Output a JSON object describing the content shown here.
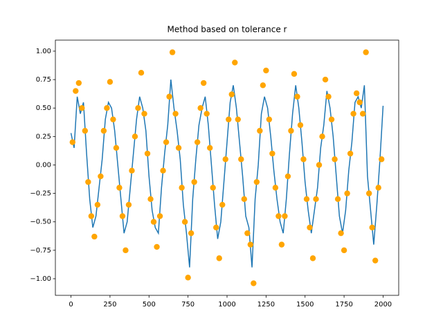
{
  "chart_data": {
    "type": "line",
    "title": "Method based on tolerance r",
    "xlim": [
      -100,
      2100
    ],
    "ylim": [
      -1.146,
      1.097
    ],
    "xticks": [
      0,
      250,
      500,
      750,
      1000,
      1250,
      1500,
      1750,
      2000
    ],
    "yticks": [
      {
        "value": 1,
        "label": "1.00"
      },
      {
        "value": 0.75,
        "label": "0.75"
      },
      {
        "value": 0.5,
        "label": "0.50"
      },
      {
        "value": 0.25,
        "label": "0.25"
      },
      {
        "value": 0,
        "label": "0.00"
      },
      {
        "value": -0.25,
        "label": "−0.25"
      },
      {
        "value": -0.5,
        "label": "−0.50"
      },
      {
        "value": -0.75,
        "label": "−0.75"
      },
      {
        "value": -1,
        "label": "−1.00"
      }
    ],
    "series": [
      {
        "color": "#1f77b4",
        "style": "line",
        "x": [
          0,
          20,
          40,
          60,
          80,
          100,
          120,
          140,
          160,
          180,
          200,
          220,
          240,
          260,
          280,
          300,
          320,
          340,
          360,
          380,
          400,
          420,
          440,
          460,
          480,
          500,
          520,
          540,
          560,
          580,
          600,
          620,
          640,
          660,
          680,
          700,
          720,
          740,
          760,
          780,
          800,
          820,
          840,
          860,
          880,
          900,
          920,
          940,
          960,
          980,
          1000,
          1020,
          1040,
          1060,
          1080,
          1100,
          1120,
          1140,
          1160,
          1180,
          1200,
          1220,
          1240,
          1260,
          1280,
          1300,
          1320,
          1340,
          1360,
          1380,
          1400,
          1420,
          1440,
          1460,
          1480,
          1500,
          1520,
          1540,
          1560,
          1580,
          1600,
          1620,
          1640,
          1660,
          1680,
          1700,
          1720,
          1740,
          1760,
          1780,
          1800,
          1820,
          1840,
          1860,
          1880,
          1900,
          1920,
          1940,
          1960,
          1980,
          2000
        ],
        "values": [
          0.28,
          0.15,
          0.6,
          0.45,
          0.55,
          0.1,
          -0.3,
          -0.55,
          -0.45,
          -0.2,
          0.05,
          0.4,
          0.55,
          0.5,
          0.3,
          0.0,
          -0.3,
          -0.6,
          -0.5,
          -0.2,
          0.1,
          0.4,
          0.6,
          0.5,
          0.3,
          -0.1,
          -0.4,
          -0.55,
          -0.6,
          -0.2,
          0.1,
          0.35,
          0.75,
          0.5,
          0.3,
          0.05,
          -0.35,
          -0.6,
          -0.9,
          -0.3,
          0.05,
          0.35,
          0.5,
          0.6,
          0.35,
          0.0,
          -0.35,
          -0.65,
          -0.5,
          -0.15,
          0.2,
          0.55,
          0.7,
          0.5,
          0.2,
          -0.1,
          -0.45,
          -0.55,
          -0.9,
          -0.3,
          0.0,
          0.45,
          0.6,
          0.5,
          0.25,
          -0.05,
          -0.3,
          -0.5,
          -0.6,
          -0.3,
          0.1,
          0.45,
          0.7,
          0.5,
          0.2,
          -0.15,
          -0.4,
          -0.6,
          -0.4,
          -0.2,
          0.15,
          0.35,
          0.65,
          0.5,
          0.25,
          -0.1,
          -0.45,
          -0.6,
          -0.4,
          -0.05,
          0.2,
          0.55,
          0.6,
          0.5,
          0.7,
          -0.1,
          -0.4,
          -0.7,
          -0.35,
          0.05,
          0.52
        ]
      },
      {
        "color": "#ffa500",
        "style": "markers",
        "x": [
          10,
          30,
          50,
          70,
          90,
          110,
          130,
          150,
          170,
          190,
          210,
          230,
          250,
          270,
          290,
          310,
          330,
          350,
          370,
          390,
          410,
          430,
          450,
          470,
          490,
          510,
          530,
          550,
          570,
          590,
          610,
          630,
          650,
          670,
          690,
          710,
          730,
          750,
          770,
          790,
          810,
          830,
          850,
          870,
          890,
          910,
          930,
          950,
          970,
          990,
          1010,
          1030,
          1050,
          1070,
          1090,
          1110,
          1130,
          1150,
          1170,
          1190,
          1210,
          1230,
          1250,
          1270,
          1290,
          1310,
          1330,
          1350,
          1370,
          1390,
          1410,
          1430,
          1450,
          1470,
          1490,
          1510,
          1530,
          1550,
          1570,
          1590,
          1610,
          1630,
          1650,
          1670,
          1690,
          1710,
          1730,
          1750,
          1770,
          1790,
          1810,
          1830,
          1850,
          1870,
          1890,
          1910,
          1930,
          1950,
          1970,
          1990
        ],
        "values": [
          0.2,
          0.65,
          0.72,
          0.5,
          0.3,
          -0.15,
          -0.45,
          -0.63,
          -0.35,
          -0.1,
          0.3,
          0.5,
          0.73,
          0.4,
          0.15,
          -0.2,
          -0.45,
          -0.75,
          -0.35,
          -0.05,
          0.25,
          0.5,
          0.81,
          0.45,
          0.1,
          -0.3,
          -0.5,
          -0.72,
          -0.45,
          -0.05,
          0.2,
          0.6,
          0.99,
          0.45,
          0.15,
          -0.2,
          -0.5,
          -0.99,
          -0.6,
          -0.15,
          0.2,
          0.5,
          0.72,
          0.45,
          0.15,
          -0.2,
          -0.55,
          -0.82,
          -0.35,
          0.05,
          0.4,
          0.62,
          0.9,
          0.4,
          0.05,
          -0.3,
          -0.6,
          -0.7,
          -1.04,
          -0.15,
          0.3,
          0.7,
          0.83,
          0.4,
          0.1,
          -0.2,
          -0.45,
          -0.7,
          -0.45,
          -0.1,
          0.3,
          0.8,
          0.6,
          0.35,
          0.05,
          -0.3,
          -0.55,
          -0.82,
          -0.3,
          0.0,
          0.25,
          0.75,
          0.6,
          0.4,
          0.05,
          -0.3,
          -0.6,
          -0.75,
          -0.25,
          0.1,
          0.45,
          0.63,
          0.55,
          0.45,
          0.99,
          -0.25,
          -0.55,
          -0.84,
          -0.2,
          0.05
        ]
      }
    ]
  }
}
